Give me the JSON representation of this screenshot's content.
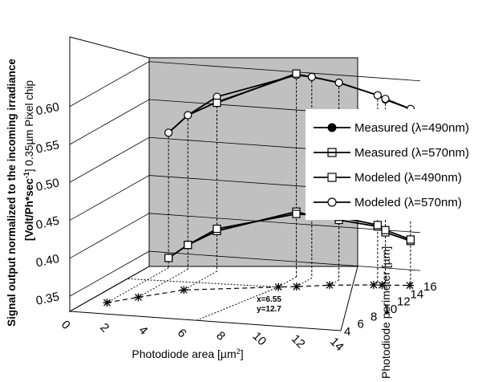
{
  "chart_data": {
    "type": "line",
    "ylabel_line1": "Signal output normalized to the incoming irradiance",
    "ylabel_line2": "[Volt/Ph*sec",
    "ylabel_sup": "-1",
    "ylabel_tail": "] 0.35µm Pixel chip",
    "xlabel": "Photodiode area [µm",
    "xlabel_sup": "2",
    "xlabel_tail": "]",
    "zlabel": "Photodiode perimeter [µm]",
    "y_ticks": [
      "0.60",
      "0.55",
      "0.50",
      "0.45",
      "0.40",
      "0.35"
    ],
    "x_ticks": [
      "0",
      "2",
      "4",
      "6",
      "8",
      "10",
      "12",
      "14"
    ],
    "z_ticks": [
      "16",
      "14",
      "12",
      "10",
      "8",
      "6",
      "4"
    ],
    "x_range": [
      0,
      14
    ],
    "y_range": [
      0.33,
      0.605
    ],
    "z_range": [
      4,
      16
    ],
    "annotation_x": "x=6.55",
    "annotation_y": "y=12.7",
    "legend_location": "right",
    "upper_series": [
      {
        "name": "Measured (λ=490nm)",
        "marker": "filled-circle",
        "z_plane": 16,
        "x": [
          1.0,
          2.0,
          3.5,
          7.6,
          8.4,
          9.8,
          11.8,
          12.2,
          13.5
        ],
        "y": [
          0.508,
          0.533,
          0.553,
          0.597,
          0.595,
          0.59,
          0.577,
          0.572,
          0.562
        ]
      },
      {
        "name": "Modeled (λ=570nm)",
        "marker": "open-circle",
        "z_plane": 16,
        "x": [
          1.0,
          2.0,
          3.5,
          7.6,
          8.4,
          9.8,
          11.8,
          12.2,
          13.5
        ],
        "y": [
          0.508,
          0.533,
          0.56,
          0.596,
          0.595,
          0.59,
          0.577,
          0.573,
          0.562
        ]
      },
      {
        "name": "Modeled (λ=490nm)",
        "marker": "open-square",
        "z_plane": 16,
        "x": [
          3.5,
          7.6
        ],
        "y": [
          0.552,
          0.598
        ]
      }
    ],
    "lower_series": [
      {
        "name": "Measured (λ=570nm)",
        "marker": "half-square",
        "z_plane": 16,
        "x": [
          1.0,
          2.0,
          3.5,
          7.6,
          8.4,
          9.8,
          11.8,
          12.2,
          13.5
        ],
        "y": [
          0.343,
          0.362,
          0.383,
          0.416,
          0.412,
          0.409,
          0.404,
          0.397,
          0.388
        ]
      },
      {
        "name": "Modeled (λ=490nm)",
        "marker": "open-square",
        "z_plane": 16,
        "x": [
          1.0,
          2.0,
          3.5,
          7.6,
          8.4,
          9.8,
          11.8,
          12.2,
          13.5
        ],
        "y": [
          0.343,
          0.362,
          0.386,
          0.413,
          0.413,
          0.413,
          0.406,
          0.4,
          0.39
        ]
      }
    ],
    "projection": {
      "x": [
        1.0,
        2.0,
        3.5,
        7.6,
        8.4,
        9.8,
        11.8,
        12.2,
        13.5
      ],
      "z": [
        6.7,
        8.5,
        11.0,
        13.3,
        13.7,
        14.6,
        15.4,
        15.5,
        15.9
      ]
    },
    "legend": [
      {
        "label": "Measured (λ=490nm)",
        "marker": "filled-circle"
      },
      {
        "label": "Measured (λ=570nm)",
        "marker": "half-square"
      },
      {
        "label": "Modeled (λ=490nm)",
        "marker": "open-square"
      },
      {
        "label": "Modeled (λ=570nm)",
        "marker": "open-circle"
      }
    ]
  }
}
